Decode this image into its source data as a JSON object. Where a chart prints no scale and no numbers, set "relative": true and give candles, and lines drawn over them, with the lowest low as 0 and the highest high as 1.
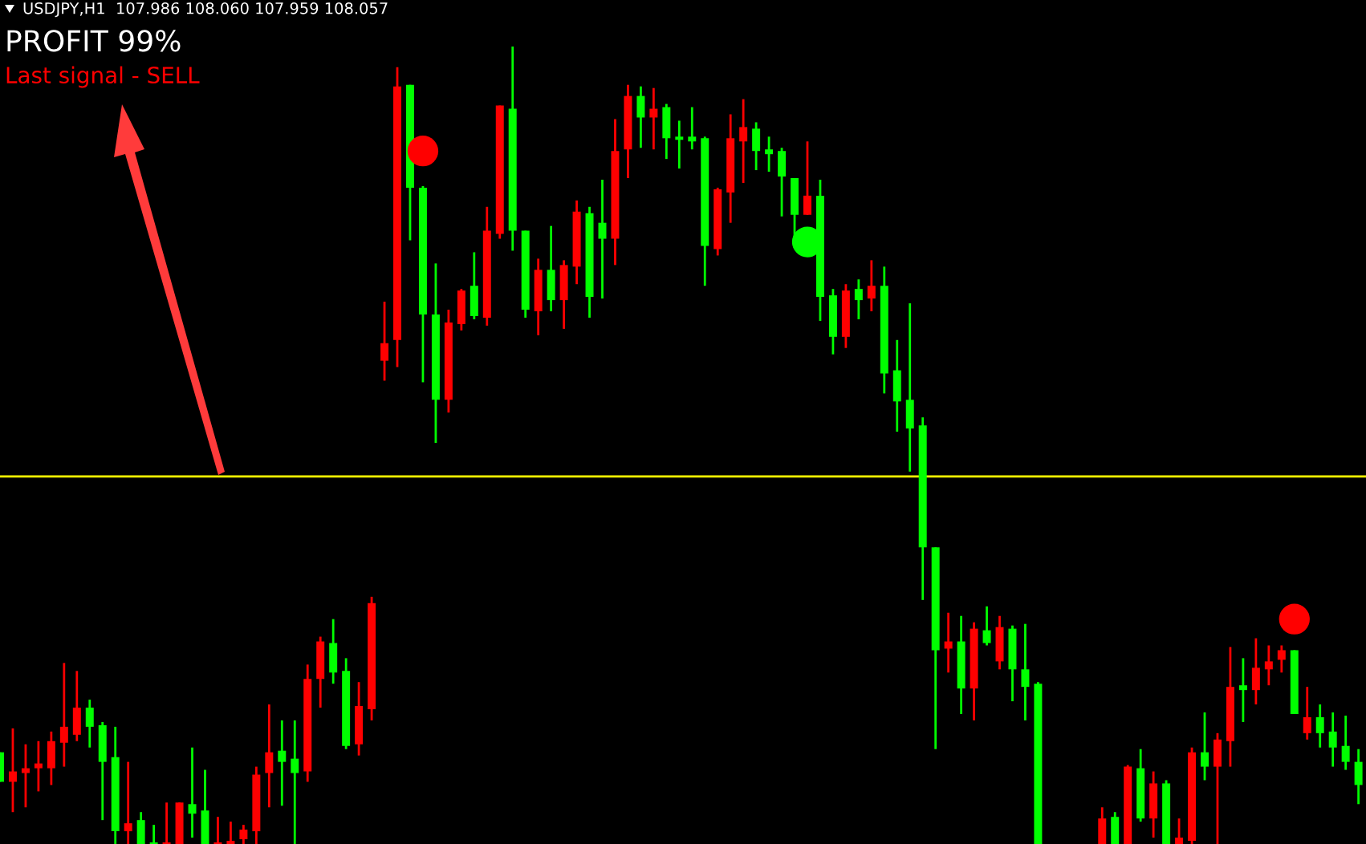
{
  "chart_data": {
    "type": "candlestick",
    "relative": true,
    "annotations": [
      "USDJPY,H1  107.986 108.060 107.959 108.057",
      "PROFIT 99%",
      "Last signal - SELL"
    ],
    "categories": [
      null,
      null,
      null,
      null,
      null,
      null,
      null,
      null,
      null,
      null,
      null,
      null,
      null,
      null,
      null,
      null,
      null,
      null,
      null,
      null,
      null,
      null,
      null,
      null,
      null,
      null,
      null,
      null,
      null,
      null,
      null,
      null,
      null,
      null,
      null,
      null,
      null,
      null,
      null,
      null,
      null,
      null,
      null,
      null,
      null,
      null,
      null,
      null,
      null,
      null,
      null,
      null,
      null,
      null,
      null,
      null,
      null,
      null,
      null,
      null,
      null,
      null,
      null,
      null,
      null,
      null,
      null,
      null,
      null,
      null,
      null,
      null,
      null,
      null,
      null,
      null,
      null,
      null,
      null,
      null,
      null,
      null,
      null,
      null,
      null,
      null,
      null,
      null,
      null,
      null,
      null,
      null,
      null,
      null,
      null,
      null,
      null,
      null,
      null,
      null,
      null,
      null,
      null,
      null,
      null,
      null,
      null
    ],
    "ohlc": [
      [
        0.115,
        0.115,
        0.078,
        0.078
      ],
      [
        0.078,
        0.145,
        0.04,
        0.091
      ],
      [
        0.089,
        0.125,
        0.046,
        0.095
      ],
      [
        0.095,
        0.129,
        0.066,
        0.101
      ],
      [
        0.095,
        0.141,
        0.074,
        0.129
      ],
      [
        0.127,
        0.227,
        0.097,
        0.147
      ],
      [
        0.137,
        0.217,
        0.129,
        0.171
      ],
      [
        0.171,
        0.181,
        0.121,
        0.147
      ],
      [
        0.149,
        0.153,
        0.03,
        0.103
      ],
      [
        0.109,
        0.147,
        0,
        0.016
      ],
      [
        0.016,
        0.103,
        0,
        0.026
      ],
      [
        0.03,
        0.04,
        0,
        0
      ],
      [
        0,
        0.024,
        0,
        0
      ],
      [
        0,
        0.052,
        0,
        0
      ],
      [
        0,
        0.052,
        0,
        0.052
      ],
      [
        0.05,
        0.121,
        0.008,
        0.038
      ],
      [
        0.042,
        0.093,
        0,
        0
      ],
      [
        0,
        0.034,
        0,
        0
      ],
      [
        0,
        0.028,
        0,
        0.004
      ],
      [
        0.006,
        0.024,
        0,
        0.018
      ],
      [
        0.016,
        0.097,
        0,
        0.087
      ],
      [
        0.089,
        0.175,
        0.046,
        0.115
      ],
      [
        0.117,
        0.155,
        0.048,
        0.103
      ],
      [
        0.107,
        0.155,
        0,
        0.089
      ],
      [
        0.091,
        0.225,
        0.078,
        0.207
      ],
      [
        0.207,
        0.26,
        0.171,
        0.254
      ],
      [
        0.252,
        0.282,
        0.201,
        0.215
      ],
      [
        0.217,
        0.233,
        0.119,
        0.123
      ],
      [
        0.125,
        0.203,
        0.111,
        0.173
      ],
      [
        0.169,
        0.31,
        0.155,
        0.302
      ],
      [
        0.606,
        0.68,
        0.581,
        0.628
      ],
      [
        0.632,
        0.974,
        0.598,
        0.95
      ],
      [
        0.952,
        0.952,
        0.757,
        0.823
      ],
      [
        0.823,
        0.825,
        0.579,
        0.664
      ],
      [
        0.664,
        0.728,
        0.503,
        0.557
      ],
      [
        0.557,
        0.67,
        0.541,
        0.654
      ],
      [
        0.652,
        0.696,
        0.644,
        0.694
      ],
      [
        0.7,
        0.742,
        0.658,
        0.662
      ],
      [
        0.66,
        0.799,
        0.65,
        0.769
      ],
      [
        0.765,
        0.926,
        0.759,
        0.926
      ],
      [
        0.922,
        1.0,
        0.744,
        0.769
      ],
      [
        0.769,
        0.769,
        0.66,
        0.67
      ],
      [
        0.668,
        0.734,
        0.638,
        0.72
      ],
      [
        0.72,
        0.775,
        0.668,
        0.682
      ],
      [
        0.682,
        0.732,
        0.646,
        0.726
      ],
      [
        0.724,
        0.807,
        0.702,
        0.793
      ],
      [
        0.791,
        0.799,
        0.66,
        0.686
      ],
      [
        0.779,
        0.833,
        0.684,
        0.759
      ],
      [
        0.759,
        0.909,
        0.726,
        0.869
      ],
      [
        0.871,
        0.952,
        0.835,
        0.938
      ],
      [
        0.938,
        0.95,
        0.873,
        0.911
      ],
      [
        0.911,
        0.948,
        0.871,
        0.922
      ],
      [
        0.924,
        0.928,
        0.859,
        0.885
      ],
      [
        0.887,
        0.907,
        0.847,
        0.883
      ],
      [
        0.887,
        0.924,
        0.871,
        0.881
      ],
      [
        0.885,
        0.887,
        0.7,
        0.75
      ],
      [
        0.746,
        0.823,
        0.738,
        0.821
      ],
      [
        0.817,
        0.915,
        0.779,
        0.885
      ],
      [
        0.881,
        0.934,
        0.829,
        0.899
      ],
      [
        0.897,
        0.905,
        0.845,
        0.869
      ],
      [
        0.871,
        0.887,
        0.843,
        0.865
      ],
      [
        0.869,
        0.873,
        0.787,
        0.837
      ],
      [
        0.835,
        0.835,
        0.748,
        0.789
      ],
      [
        0.789,
        0.881,
        0.789,
        0.813
      ],
      [
        0.813,
        0.833,
        0.656,
        0.686
      ],
      [
        0.688,
        0.696,
        0.614,
        0.636
      ],
      [
        0.636,
        0.702,
        0.622,
        0.694
      ],
      [
        0.696,
        0.708,
        0.658,
        0.682
      ],
      [
        0.684,
        0.732,
        0.668,
        0.7
      ],
      [
        0.7,
        0.724,
        0.565,
        0.59
      ],
      [
        0.594,
        0.632,
        0.517,
        0.555
      ],
      [
        0.557,
        0.678,
        0.467,
        0.521
      ],
      [
        0.525,
        0.535,
        0.306,
        0.372
      ],
      [
        0.372,
        0.372,
        0.119,
        0.243
      ],
      [
        0.245,
        0.29,
        0.215,
        0.254
      ],
      [
        0.254,
        0.286,
        0.163,
        0.195
      ],
      [
        0.195,
        0.278,
        0.155,
        0.27
      ],
      [
        0.268,
        0.298,
        0.249,
        0.252
      ],
      [
        0.229,
        0.286,
        0.219,
        0.272
      ],
      [
        0.27,
        0.274,
        0.179,
        0.219
      ],
      [
        0.219,
        0.276,
        0.155,
        0.197
      ],
      [
        0.201,
        0.203,
        0,
        0
      ],
      null,
      null,
      null,
      null,
      [
        0,
        0.046,
        0,
        0.032
      ],
      [
        0.034,
        0.04,
        0,
        0
      ],
      [
        0,
        0.099,
        0,
        0.097
      ],
      [
        0.095,
        0.119,
        0.028,
        0.032
      ],
      [
        0.032,
        0.091,
        0.008,
        0.076
      ],
      [
        0.076,
        0.08,
        0,
        0
      ],
      [
        0,
        0.032,
        0,
        0.008
      ],
      [
        0.004,
        0.121,
        0,
        0.115
      ],
      [
        0.115,
        0.165,
        0.08,
        0.097
      ],
      [
        0.097,
        0.139,
        0,
        0.131
      ],
      [
        0.129,
        0.247,
        0.097,
        0.197
      ],
      [
        0.199,
        0.233,
        0.153,
        0.193
      ],
      [
        0.193,
        0.258,
        0.175,
        0.221
      ],
      [
        0.219,
        0.249,
        0.199,
        0.229
      ],
      [
        0.231,
        0.249,
        0.215,
        0.243
      ],
      [
        0.243,
        0.243,
        0.163,
        0.163
      ],
      [
        0.139,
        0.197,
        0.131,
        0.159
      ],
      [
        0.159,
        0.175,
        0.121,
        0.139
      ],
      [
        0.141,
        0.165,
        0.097,
        0.121
      ],
      [
        0.123,
        0.161,
        0.093,
        0.103
      ],
      [
        0.103,
        0.119,
        0.05,
        0.074
      ]
    ],
    "colors": [
      "#00ff00",
      "#ff0000",
      "#ff0000",
      "#ff0000",
      "#ff0000",
      "#ff0000",
      "#ff0000",
      "#00ff00",
      "#00ff00",
      "#00ff00",
      "#ff0000",
      "#00ff00",
      "#00ff00",
      "#ff0000",
      "#ff0000",
      "#00ff00",
      "#00ff00",
      "#ff0000",
      "#ff0000",
      "#ff0000",
      "#ff0000",
      "#ff0000",
      "#00ff00",
      "#00ff00",
      "#ff0000",
      "#ff0000",
      "#00ff00",
      "#00ff00",
      "#ff0000",
      "#ff0000",
      "#ff0000",
      "#ff0000",
      "#00ff00",
      "#00ff00",
      "#00ff00",
      "#ff0000",
      "#ff0000",
      "#00ff00",
      "#ff0000",
      "#ff0000",
      "#00ff00",
      "#00ff00",
      "#ff0000",
      "#00ff00",
      "#ff0000",
      "#ff0000",
      "#00ff00",
      "#00ff00",
      "#ff0000",
      "#ff0000",
      "#00ff00",
      "#ff0000",
      "#00ff00",
      "#00ff00",
      "#00ff00",
      "#00ff00",
      "#ff0000",
      "#ff0000",
      "#ff0000",
      "#00ff00",
      "#00ff00",
      "#00ff00",
      "#00ff00",
      "#ff0000",
      "#00ff00",
      "#00ff00",
      "#ff0000",
      "#00ff00",
      "#ff0000",
      "#00ff00",
      "#00ff00",
      "#00ff00",
      "#00ff00",
      "#00ff00",
      "#ff0000",
      "#00ff00",
      "#ff0000",
      "#00ff00",
      "#ff0000",
      "#00ff00",
      "#00ff00",
      "#00ff00",
      null,
      null,
      null,
      null,
      "#ff0000",
      "#00ff00",
      "#ff0000",
      "#00ff00",
      "#ff0000",
      "#00ff00",
      "#ff0000",
      "#ff0000",
      "#00ff00",
      "#ff0000",
      "#ff0000",
      "#00ff00",
      "#ff0000",
      "#ff0000",
      "#ff0000",
      "#00ff00",
      "#ff0000",
      "#00ff00",
      "#00ff00",
      "#00ff00",
      "#00ff00"
    ],
    "series": [
      {
        "type": "scatter",
        "color": "#ff0000",
        "values": [
          null,
          null,
          null,
          null,
          null,
          null,
          null,
          null,
          null,
          null,
          null,
          null,
          null,
          null,
          null,
          null,
          null,
          null,
          null,
          null,
          null,
          null,
          null,
          null,
          null,
          null,
          null,
          null,
          null,
          null,
          null,
          null,
          null,
          0.869,
          null,
          null,
          null,
          null,
          null,
          null,
          null,
          null,
          null,
          null,
          null,
          null,
          null,
          null,
          null,
          null,
          null,
          null,
          null,
          null,
          null,
          null,
          null,
          null,
          null,
          null,
          null,
          null,
          null,
          null,
          null,
          null,
          null,
          null,
          null,
          null,
          null,
          null,
          null,
          null,
          null,
          null,
          null,
          null,
          null,
          null,
          null,
          null,
          null,
          null,
          null,
          null,
          null,
          null,
          null,
          null,
          null,
          null,
          null,
          null,
          null,
          null,
          null,
          null,
          null,
          null,
          null,
          0.282,
          null,
          null,
          null,
          null,
          null
        ]
      },
      {
        "type": "scatter",
        "color": "#00ff00",
        "values": [
          null,
          null,
          null,
          null,
          null,
          null,
          null,
          null,
          null,
          null,
          null,
          null,
          null,
          null,
          null,
          null,
          null,
          null,
          null,
          null,
          null,
          null,
          null,
          null,
          null,
          null,
          null,
          null,
          null,
          null,
          null,
          null,
          null,
          null,
          null,
          null,
          null,
          null,
          null,
          null,
          null,
          null,
          null,
          null,
          null,
          null,
          null,
          null,
          null,
          null,
          null,
          null,
          null,
          null,
          null,
          null,
          null,
          null,
          null,
          null,
          null,
          null,
          null,
          0.755,
          null,
          null,
          null,
          null,
          null,
          null,
          null,
          null,
          null,
          null,
          null,
          null,
          null,
          null,
          null,
          null,
          null,
          null,
          null,
          null,
          null,
          null,
          null,
          null,
          null,
          null,
          null,
          null,
          null,
          null,
          null,
          null,
          null,
          null,
          null,
          null,
          null,
          null,
          null,
          null,
          null,
          null,
          null
        ]
      }
    ],
    "ref_lines": [
      {
        "axis": "y",
        "value": 0.461,
        "color": "#ffff00"
      }
    ],
    "marker": "circle",
    "grid": false,
    "legend": false
  }
}
